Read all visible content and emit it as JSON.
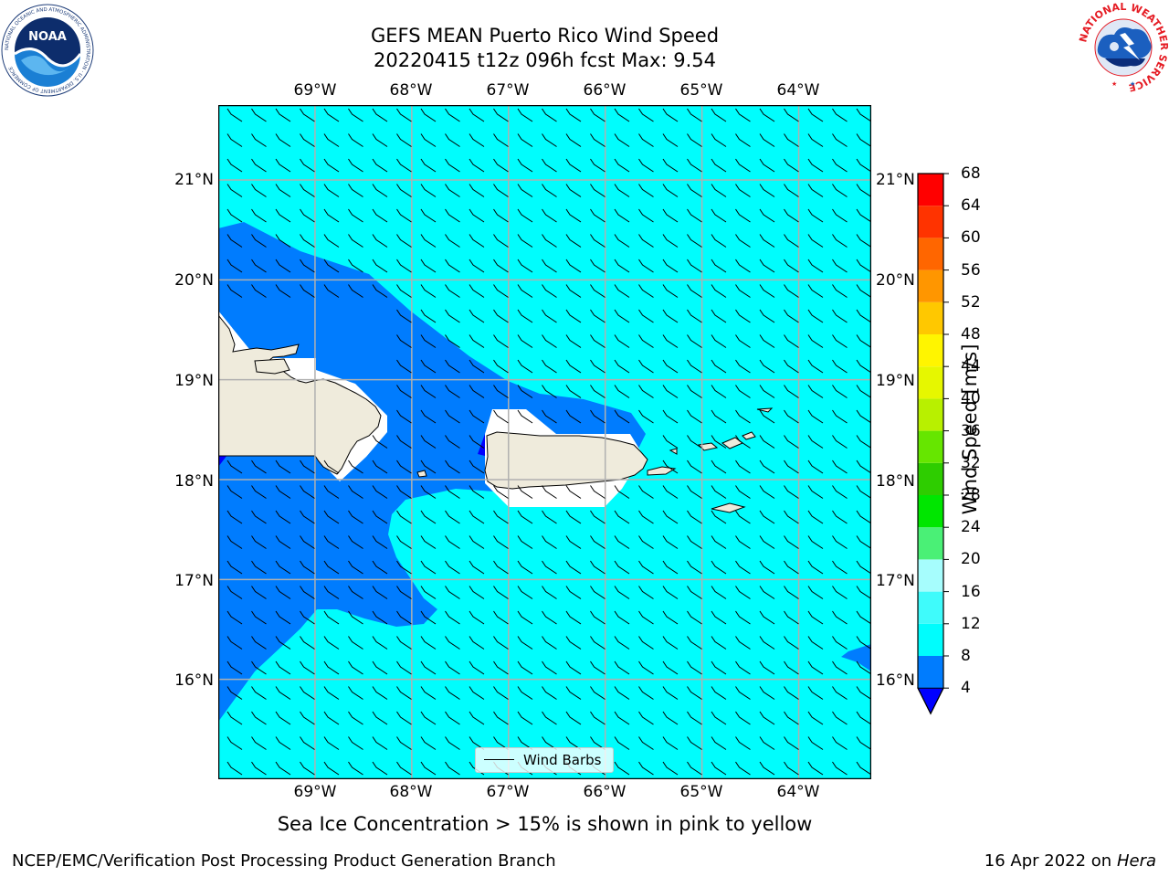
{
  "title": {
    "line1": "GEFS MEAN Puerto Rico Wind Speed",
    "line2": "20220415 t12z 096h fcst   Max: 9.54"
  },
  "map": {
    "lon_labels": [
      "69°W",
      "68°W",
      "67°W",
      "66°W",
      "65°W",
      "64°W"
    ],
    "lon_values": [
      -69,
      -68,
      -67,
      -66,
      -65,
      -64
    ],
    "lat_labels": [
      "21°N",
      "20°N",
      "19°N",
      "18°N",
      "17°N",
      "16°N"
    ],
    "lat_values": [
      21,
      20,
      19,
      18,
      17,
      16
    ],
    "extent": {
      "lon_min": -70,
      "lon_max": -63.25,
      "lat_min": 15,
      "lat_max": 21.75
    },
    "legend_label": "Wind Barbs",
    "land_color": "#efebdc",
    "ocean_color_low": "#007cfe",
    "ocean_color_mid": "#00fdfd"
  },
  "colorbar": {
    "title": "Wind Speed [m/s]",
    "levels": [
      4,
      8,
      12,
      16,
      20,
      24,
      28,
      32,
      36,
      40,
      44,
      48,
      52,
      56,
      60,
      64,
      68
    ],
    "colors": [
      "#007cfe",
      "#00fdfd",
      "#3ffbfb",
      "#a6fdfd",
      "#4af076",
      "#00e600",
      "#2ecd00",
      "#66e600",
      "#b8f000",
      "#e6f700",
      "#fff500",
      "#ffc800",
      "#ff9600",
      "#ff6600",
      "#ff3300",
      "#ff0000"
    ],
    "under_color": "#0000ff"
  },
  "subnote": "Sea Ice Concentration > 15% is shown in pink to yellow",
  "footer": {
    "left": "NCEP/EMC/Verification Post Processing Product Generation Branch",
    "date": "16 Apr 2022 on ",
    "host": "Hera"
  },
  "logos": {
    "noaa": {
      "text": "NOAA",
      "ring_text": "NATIONAL OCEANIC AND ATMOSPHERIC ADMINISTRATION · U.S. DEPARTMENT OF COMMERCE"
    },
    "nws": {
      "ring_text": "NATIONAL WEATHER SERVICE"
    }
  }
}
